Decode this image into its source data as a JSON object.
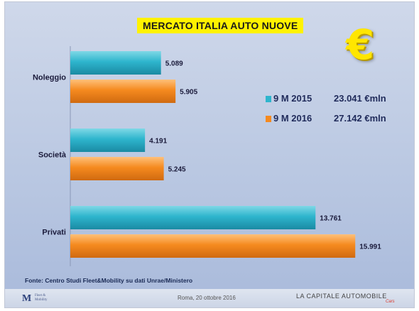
{
  "title": "MERCATO ITALIA AUTO NUOVE",
  "euro_symbol": "€",
  "colors": {
    "series_2015": "#2eb5cd",
    "series_2016": "#f58a1f",
    "title_bg": "#fff200",
    "euro": "#ffe600"
  },
  "legend": [
    {
      "label": "9 M 2015",
      "total": "23.041 €mln"
    },
    {
      "label": "9 M 2016",
      "total": "27.142 €mln"
    }
  ],
  "chart_data": {
    "type": "bar",
    "orientation": "horizontal",
    "categories": [
      "Noleggio",
      "Società",
      "Privati"
    ],
    "series": [
      {
        "name": "9 M 2015",
        "values": [
          5.089,
          4.191,
          13.761
        ],
        "labels": [
          "5.089",
          "4.191",
          "13.761"
        ]
      },
      {
        "name": "9 M 2016",
        "values": [
          5.905,
          5.245,
          15.991
        ],
        "labels": [
          "5.905",
          "5.245",
          "15.991"
        ]
      }
    ],
    "xlim": [
      0,
      16.5
    ],
    "grid": false,
    "legend_position": "right"
  },
  "source_note": "Fonte: Centro Studi Fleet&Mobility su dati Unrae/Ministero",
  "footer": {
    "logo_mark": "M",
    "logo_text_1": "Fleet &",
    "logo_text_2": "Mobility",
    "event": "Roma, 20 ottobre 2016",
    "brand": "LA CAPITALE AUTOMOBILE",
    "brand_sub": "Cars"
  }
}
